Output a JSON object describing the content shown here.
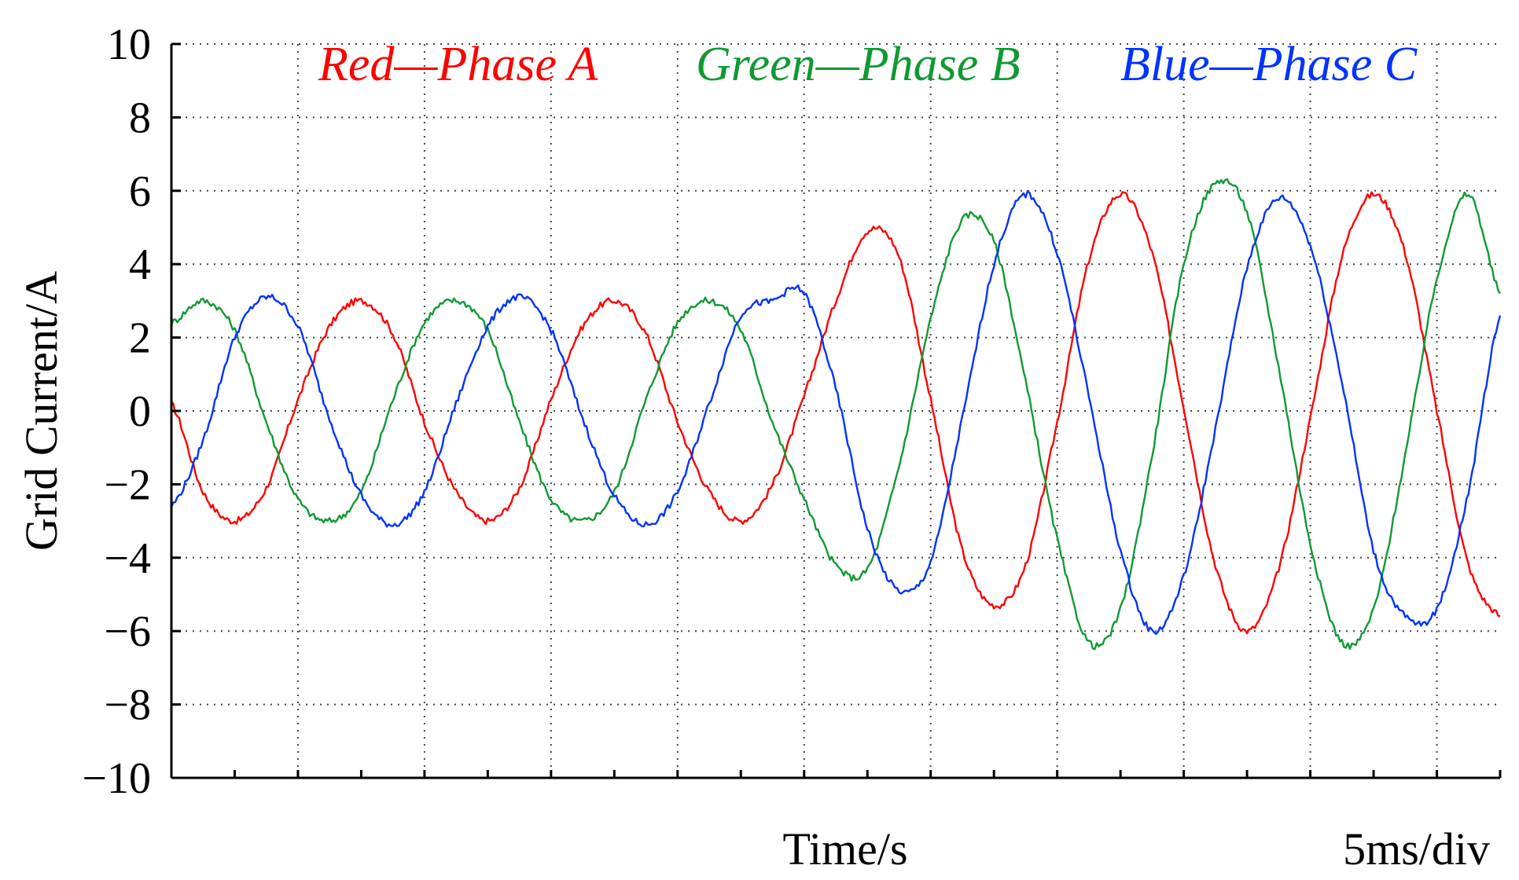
{
  "chart_data": {
    "type": "line",
    "title": "",
    "xlabel": "Time/s",
    "ylabel": "Grid Current/A",
    "scale_note": "5ms/div",
    "ylim": [
      -10,
      10
    ],
    "yticks": [
      10,
      8,
      6,
      4,
      2,
      0,
      -2,
      -4,
      -6,
      -8,
      -10
    ],
    "ytick_labels": [
      "10",
      "8",
      "6",
      "4",
      "2",
      "0",
      "−2",
      "−4",
      "−6",
      "−8",
      "−10"
    ],
    "x_unit": "ms",
    "xlim": [
      0,
      105
    ],
    "x_divisions": 21,
    "grid": true,
    "legend": [
      {
        "label": "Red—Phase A",
        "color": "#ff0000"
      },
      {
        "label": "Green—Phase B",
        "color": "#119933"
      },
      {
        "label": "Blue—Phase C",
        "color": "#0033ff"
      }
    ],
    "series": [
      {
        "color": "#ff0000",
        "x": [
          0,
          2.5,
          5,
          7.5,
          10,
          12.5,
          15,
          17.5,
          20,
          22.5,
          25,
          27.5,
          30,
          32.5,
          35,
          37.5,
          40,
          42.5,
          45,
          47.5,
          50,
          52.5,
          55,
          57.5,
          60,
          62.5,
          65,
          67.5,
          70,
          72.5,
          75,
          77.5,
          80,
          82.5,
          85,
          87.5,
          90,
          92.5,
          95,
          97.5,
          100,
          102.5,
          105
        ],
        "values": [
          0.2,
          -2.2,
          -3.0,
          -2.1,
          0.3,
          2.3,
          3.0,
          2.1,
          -0.3,
          -2.2,
          -3.0,
          -2.1,
          0.3,
          2.3,
          3.0,
          2.1,
          -0.3,
          -2.2,
          -3.0,
          -2.0,
          0.4,
          3.0,
          4.9,
          4.2,
          0.3,
          -3.8,
          -5.3,
          -4.2,
          -0.3,
          4.1,
          5.9,
          4.3,
          0.1,
          -4.2,
          -6.0,
          -4.3,
          -0.2,
          4.2,
          5.9,
          4.3,
          0.0,
          -4.2,
          -5.6
        ]
      },
      {
        "color": "#119933",
        "x": [
          0,
          2.5,
          5,
          7.5,
          10,
          12.5,
          15,
          17.5,
          20,
          22.5,
          25,
          27.5,
          30,
          32.5,
          35,
          37.5,
          40,
          42.5,
          45,
          47.5,
          50,
          52.5,
          55,
          57.5,
          60,
          62.5,
          65,
          67.5,
          70,
          72.5,
          75,
          77.5,
          80,
          82.5,
          85,
          87.5,
          90,
          92.5,
          95,
          97.5,
          100,
          102.5,
          105
        ],
        "values": [
          2.4,
          3.0,
          2.2,
          -0.3,
          -2.4,
          -3.0,
          -2.2,
          0.3,
          2.4,
          3.0,
          2.2,
          -0.3,
          -2.4,
          -3.0,
          -2.2,
          0.3,
          2.4,
          3.0,
          2.2,
          -0.3,
          -2.4,
          -4.2,
          -4.3,
          -1.5,
          2.5,
          5.2,
          4.6,
          0.8,
          -3.5,
          -6.3,
          -5.4,
          -1.2,
          4.0,
          6.2,
          5.4,
          1.2,
          -3.6,
          -6.3,
          -5.4,
          -1.2,
          3.6,
          5.9,
          3.2
        ]
      },
      {
        "color": "#0033ff",
        "x": [
          0,
          2.5,
          5,
          7.5,
          10,
          12.5,
          15,
          17.5,
          20,
          22.5,
          25,
          27.5,
          30,
          32.5,
          35,
          37.5,
          40,
          42.5,
          45,
          47.5,
          50,
          52.5,
          55,
          57.5,
          60,
          62.5,
          65,
          67.5,
          70,
          72.5,
          75,
          77.5,
          80,
          82.5,
          85,
          87.5,
          90,
          92.5,
          95,
          97.5,
          100,
          102.5,
          105
        ],
        "values": [
          -2.6,
          -0.8,
          2.0,
          3.1,
          2.3,
          -0.2,
          -2.3,
          -3.1,
          -2.2,
          0.2,
          2.3,
          3.1,
          2.2,
          -0.2,
          -2.3,
          -3.1,
          -2.2,
          0.2,
          2.6,
          3.0,
          3.2,
          0.6,
          -3.2,
          -4.9,
          -4.1,
          -0.2,
          4.0,
          5.9,
          4.3,
          0.4,
          -3.8,
          -6.0,
          -4.5,
          -0.5,
          3.9,
          5.8,
          4.5,
          0.8,
          -3.8,
          -5.6,
          -5.4,
          -2.2,
          2.6
        ]
      }
    ]
  }
}
